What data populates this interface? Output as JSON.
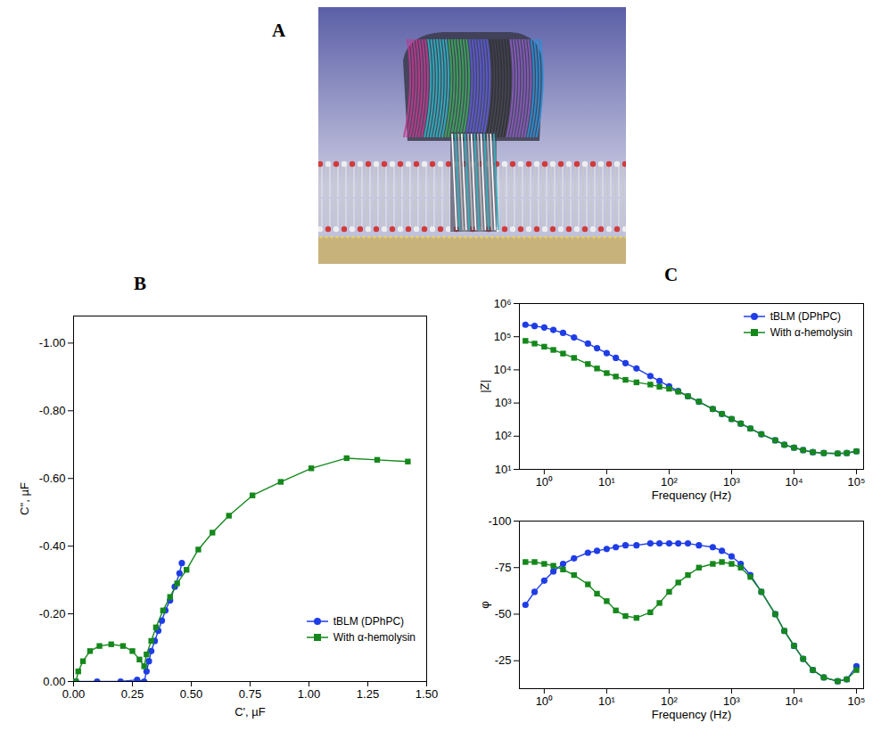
{
  "image_panel": {
    "label": "A"
  },
  "chart_data": [
    {
      "panel": "B",
      "type": "line",
      "x_label": "C', µF",
      "y_label": "C'', µF",
      "xlim": [
        0,
        1.5
      ],
      "ylim": [
        0,
        -1.08
      ],
      "xticks": [
        {
          "value": 0,
          "label": "0.00"
        },
        {
          "value": 0.25,
          "label": "0.25"
        },
        {
          "value": 0.5,
          "label": "0.50"
        },
        {
          "value": 0.75,
          "label": "0.75"
        },
        {
          "value": 1,
          "label": "1.00"
        },
        {
          "value": 1.25,
          "label": "1.25"
        },
        {
          "value": 1.5,
          "label": "1.50"
        }
      ],
      "yticks": [
        {
          "value": 0,
          "label": "0.00"
        },
        {
          "value": -0.2,
          "label": "-0.20"
        },
        {
          "value": -0.4,
          "label": "-0.40"
        },
        {
          "value": -0.6,
          "label": "-0.60"
        },
        {
          "value": -0.8,
          "label": "-0.80"
        },
        {
          "value": -1,
          "label": "-1.00"
        }
      ],
      "legend": "lower right",
      "series": [
        {
          "name": "tBLM (DPhPC)",
          "color": "#1f3de6",
          "marker": "circle",
          "x": [
            0.01,
            0.1,
            0.2,
            0.27,
            0.3,
            0.31,
            0.32,
            0.33,
            0.345,
            0.36,
            0.375,
            0.39,
            0.41,
            0.43,
            0.45,
            0.46
          ],
          "values": [
            0,
            0,
            0,
            -0.005,
            0,
            -0.03,
            -0.06,
            -0.09,
            -0.12,
            -0.15,
            -0.18,
            -0.21,
            -0.24,
            -0.28,
            -0.32,
            -0.35
          ]
        },
        {
          "name": "With α-hemolysin",
          "color": "#15881c",
          "marker": "square",
          "x": [
            0.01,
            0.02,
            0.04,
            0.07,
            0.11,
            0.16,
            0.21,
            0.25,
            0.28,
            0.3,
            0.31,
            0.33,
            0.35,
            0.38,
            0.41,
            0.44,
            0.48,
            0.53,
            0.59,
            0.66,
            0.76,
            0.88,
            1.01,
            1.16,
            1.29,
            1.42
          ],
          "values": [
            0,
            -0.03,
            -0.06,
            -0.09,
            -0.105,
            -0.11,
            -0.105,
            -0.09,
            -0.065,
            -0.045,
            -0.08,
            -0.12,
            -0.16,
            -0.21,
            -0.25,
            -0.29,
            -0.33,
            -0.39,
            -0.44,
            -0.49,
            -0.55,
            -0.59,
            -0.63,
            -0.66,
            -0.655,
            -0.65
          ]
        }
      ]
    },
    {
      "panel": "C",
      "type": "line",
      "x_label": "Frequency (Hz)",
      "y_label": "|Z|",
      "log": true,
      "xlim": [
        0.4,
        130000
      ],
      "ylim": [
        10,
        1000000
      ],
      "xticks": [
        {
          "value": 1,
          "label": "10⁰"
        },
        {
          "value": 10,
          "label": "10¹"
        },
        {
          "value": 100,
          "label": "10²"
        },
        {
          "value": 1000,
          "label": "10³"
        },
        {
          "value": 10000,
          "label": "10⁴"
        },
        {
          "value": 100000,
          "label": "10⁵"
        }
      ],
      "yticks": [
        {
          "value": 10,
          "label": "10¹"
        },
        {
          "value": 100,
          "label": "10²"
        },
        {
          "value": 1000,
          "label": "10³"
        },
        {
          "value": 10000,
          "label": "10⁴"
        },
        {
          "value": 100000,
          "label": "10⁵"
        },
        {
          "value": 1000000,
          "label": "10⁶"
        }
      ],
      "legend": "upper right",
      "x": [
        0.5,
        0.7,
        1,
        1.4,
        2,
        3,
        5,
        7,
        10,
        14,
        20,
        30,
        50,
        70,
        100,
        140,
        200,
        300,
        500,
        700,
        1000,
        1400,
        2000,
        3000,
        5000,
        7000,
        10000,
        14000,
        20000,
        30000,
        50000,
        70000,
        100000
      ],
      "series": [
        {
          "name": "tBLM (DPhPC)",
          "color": "#1f3de6",
          "marker": "circle",
          "values": [
            230000,
            210000,
            190000,
            160000,
            130000,
            95000,
            62000,
            45000,
            32000,
            23000,
            16000,
            11000,
            6500,
            4600,
            3200,
            2300,
            1600,
            1100,
            660,
            470,
            330,
            240,
            170,
            115,
            75,
            55,
            45,
            38,
            33,
            31,
            30,
            31,
            35
          ]
        },
        {
          "name": "With α-hemolysin",
          "color": "#15881c",
          "marker": "square",
          "values": [
            75000,
            62000,
            50000,
            40000,
            31000,
            23000,
            15000,
            11000,
            8000,
            6300,
            5000,
            4200,
            3600,
            3100,
            2700,
            2200,
            1600,
            1100,
            660,
            470,
            330,
            240,
            170,
            115,
            75,
            55,
            45,
            38,
            33,
            31,
            30,
            31,
            35
          ]
        }
      ]
    },
    {
      "type": "line",
      "x_label": "Frequency (Hz)",
      "y_label": "φ",
      "log": "x",
      "xlim": [
        0.4,
        130000
      ],
      "ylim": [
        -10,
        -100
      ],
      "xticks": [
        {
          "value": 1,
          "label": "10⁰"
        },
        {
          "value": 10,
          "label": "10¹"
        },
        {
          "value": 100,
          "label": "10²"
        },
        {
          "value": 1000,
          "label": "10³"
        },
        {
          "value": 10000,
          "label": "10⁴"
        },
        {
          "value": 100000,
          "label": "10⁵"
        }
      ],
      "yticks": [
        -100,
        -75,
        -50,
        -25
      ],
      "x": [
        0.5,
        0.7,
        1,
        1.4,
        2,
        3,
        5,
        7,
        10,
        14,
        20,
        30,
        50,
        70,
        100,
        140,
        200,
        300,
        500,
        700,
        1000,
        1400,
        2000,
        3000,
        5000,
        7000,
        10000,
        14000,
        20000,
        30000,
        50000,
        70000,
        100000
      ],
      "series": [
        {
          "color": "#1f3de6",
          "marker": "circle",
          "values": [
            -55,
            -62,
            -68,
            -73,
            -77,
            -80,
            -83,
            -84,
            -85,
            -86,
            -87,
            -87,
            -88,
            -88,
            -88,
            -88,
            -88,
            -87,
            -86,
            -84,
            -81,
            -77,
            -71,
            -62,
            -50,
            -41,
            -33,
            -26,
            -20,
            -16,
            -14,
            -15,
            -22
          ]
        },
        {
          "color": "#15881c",
          "marker": "square",
          "values": [
            -78,
            -78,
            -77,
            -76,
            -74,
            -71,
            -66,
            -61,
            -57,
            -52,
            -49,
            -48,
            -51,
            -56,
            -62,
            -67,
            -71,
            -75,
            -77,
            -78,
            -77,
            -75,
            -70,
            -62,
            -50,
            -41,
            -33,
            -26,
            -20,
            -16,
            -14,
            -15,
            -20
          ]
        }
      ]
    }
  ]
}
